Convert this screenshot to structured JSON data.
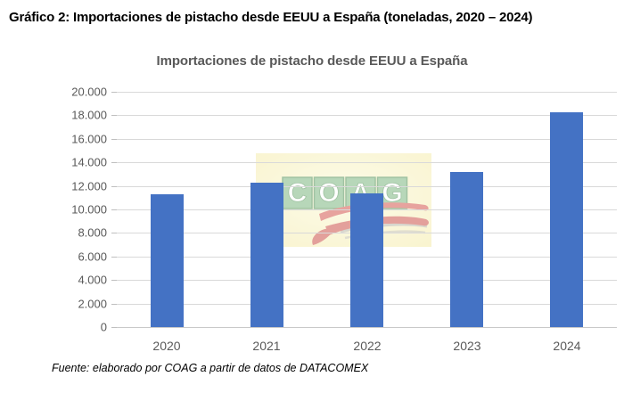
{
  "page": {
    "heading": "Gráfico 2: Importaciones de pistacho desde EEUU a España (toneladas, 2020 – 2024)",
    "source": "Fuente: elaborado por COAG a partir de datos de DATACOMEX"
  },
  "chart_data": {
    "type": "bar",
    "title": "Importaciones de pistacho desde EEUU a España",
    "categories": [
      "2020",
      "2021",
      "2022",
      "2023",
      "2024"
    ],
    "values": [
      11300,
      12300,
      11400,
      13200,
      18250
    ],
    "xlabel": "",
    "ylabel": "",
    "ylim": [
      0,
      20000
    ],
    "ytick_interval": 2000,
    "ytick_labels": [
      "20.000",
      "18.000",
      "16.000",
      "14.000",
      "12.000",
      "10.000",
      "8.000",
      "6.000",
      "4.000",
      "2.000",
      "0"
    ],
    "grid": true,
    "legend": "none",
    "bar_color": "#4472C4",
    "gridline_color": "#D9D9D9",
    "axis_text_color": "#595959",
    "title_color": "#595959"
  },
  "watermark": {
    "text": "COAG",
    "bg_color": "#F5EDA0",
    "bg_center_color": "#FBF7CE",
    "tile_color": "#61A766",
    "tile_border_color": "#2F7A33",
    "letter_color": "#FFFFFF",
    "accent_color": "#CB3529",
    "shadow_color": "#8A8A8A"
  }
}
